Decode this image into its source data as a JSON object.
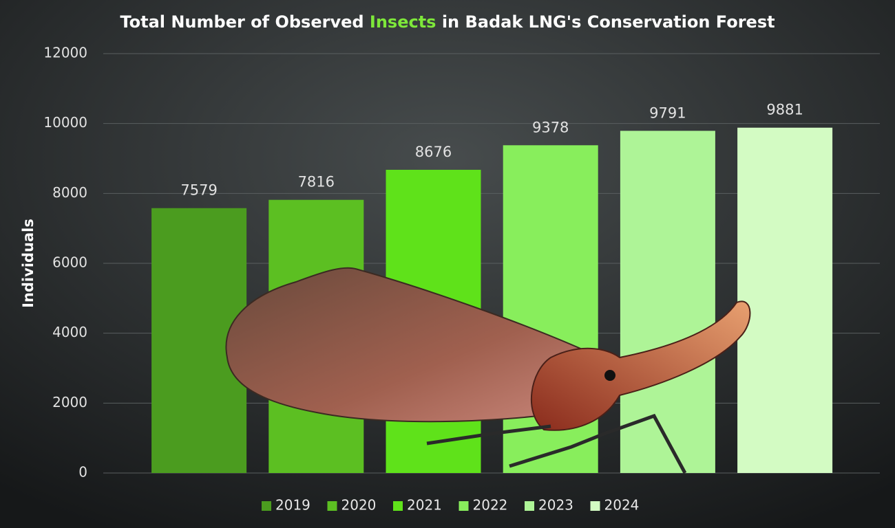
{
  "chart_data": {
    "type": "bar",
    "title": [
      {
        "text": "Total Number of Observed "
      },
      {
        "text": "Insects",
        "color": "#7ee83a"
      },
      {
        "text": " in Badak LNG's Conservation Forest"
      }
    ],
    "y_label": "Individuals",
    "series": [
      {
        "name": "2019",
        "color": "#4b9c1f",
        "values": [
          7579
        ]
      },
      {
        "name": "2020",
        "color": "#5cbf22",
        "values": [
          7816
        ]
      },
      {
        "name": "2021",
        "color": "#5fe21a",
        "values": [
          8676
        ]
      },
      {
        "name": "2022",
        "color": "#88ee5c",
        "values": [
          9378
        ]
      },
      {
        "name": "2023",
        "color": "#aef497",
        "values": [
          9791
        ]
      },
      {
        "name": "2024",
        "color": "#d3fbc3",
        "values": [
          9881
        ]
      }
    ],
    "ylim": [
      0,
      12000
    ],
    "yticks": [
      0,
      2000,
      4000,
      6000,
      8000,
      10000,
      12000
    ],
    "grid": true,
    "legend": "bottom"
  }
}
